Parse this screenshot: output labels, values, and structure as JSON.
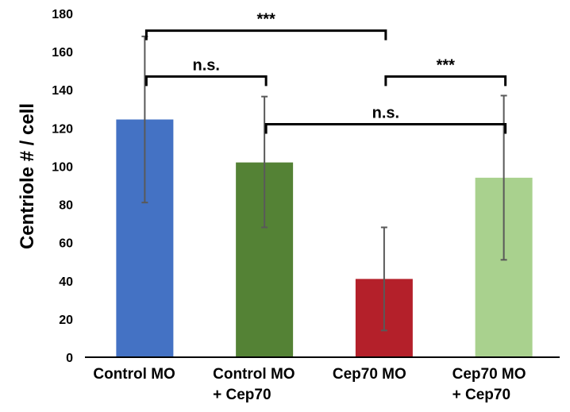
{
  "chart_data": {
    "type": "bar",
    "categories": [
      [
        "Control MO"
      ],
      [
        "Control MO",
        "+ Cep70"
      ],
      [
        "Cep70 MO"
      ],
      [
        "Cep70 MO",
        "+ Cep70"
      ]
    ],
    "values": [
      124.5,
      102,
      41,
      94
    ],
    "error_low": [
      81,
      68,
      14,
      51
    ],
    "error_high": [
      168,
      136.5,
      68,
      137
    ],
    "colors": [
      "#4472C4",
      "#548235",
      "#B4202A",
      "#A9D18E"
    ],
    "ylabel": "Centriole # / cell",
    "xlabel": "",
    "ylim": [
      0,
      180
    ],
    "yticks": [
      0,
      20,
      40,
      60,
      80,
      100,
      120,
      140,
      160,
      180
    ],
    "grid": false,
    "legend": "none",
    "significance": [
      {
        "from": 0,
        "to": 2,
        "label": "***",
        "y": 171
      },
      {
        "from": 0,
        "to": 1,
        "label": "n.s.",
        "y": 147
      },
      {
        "from": 2,
        "to": 3,
        "label": "***",
        "y": 147
      },
      {
        "from": 1,
        "to": 3,
        "label": "n.s.",
        "y": 122
      }
    ]
  }
}
